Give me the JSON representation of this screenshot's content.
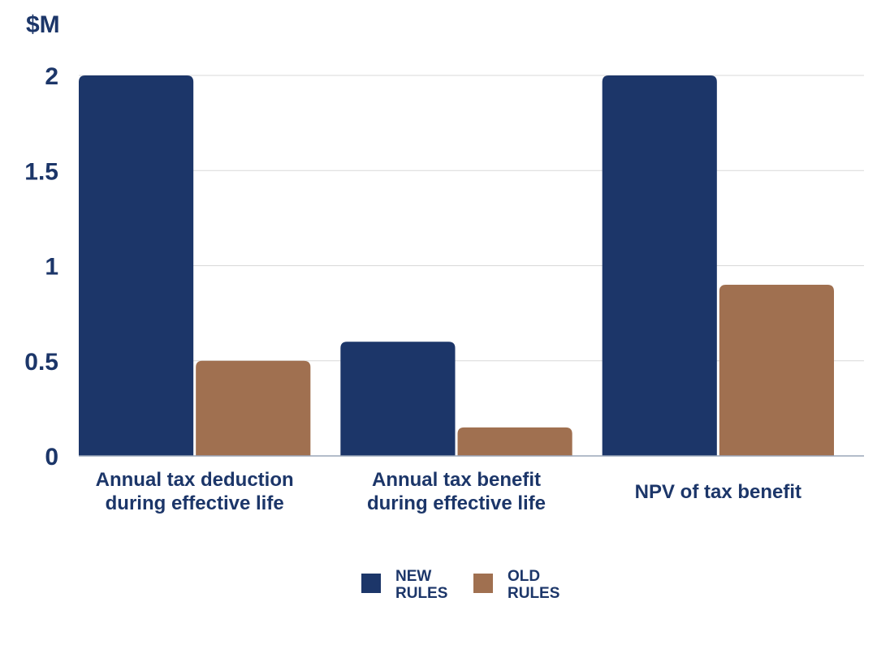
{
  "chart_data": {
    "type": "bar",
    "ylabel": "$M",
    "ylim": [
      0,
      2
    ],
    "yticks": [
      "0",
      "0.5",
      "1",
      "1.5",
      "2"
    ],
    "grid": true,
    "legend_position": "bottom-center",
    "categories": [
      [
        "Annual tax deduction",
        "during effective life"
      ],
      [
        "Annual tax benefit",
        "during effective life"
      ],
      [
        "NPV of tax benefit"
      ]
    ],
    "series": [
      {
        "name": [
          "NEW",
          "RULES"
        ],
        "color": "#1c3669",
        "values": [
          2.0,
          0.6,
          2.0
        ]
      },
      {
        "name": [
          "OLD",
          "RULES"
        ],
        "color": "#a07050",
        "values": [
          0.5,
          0.15,
          0.9
        ]
      }
    ]
  }
}
